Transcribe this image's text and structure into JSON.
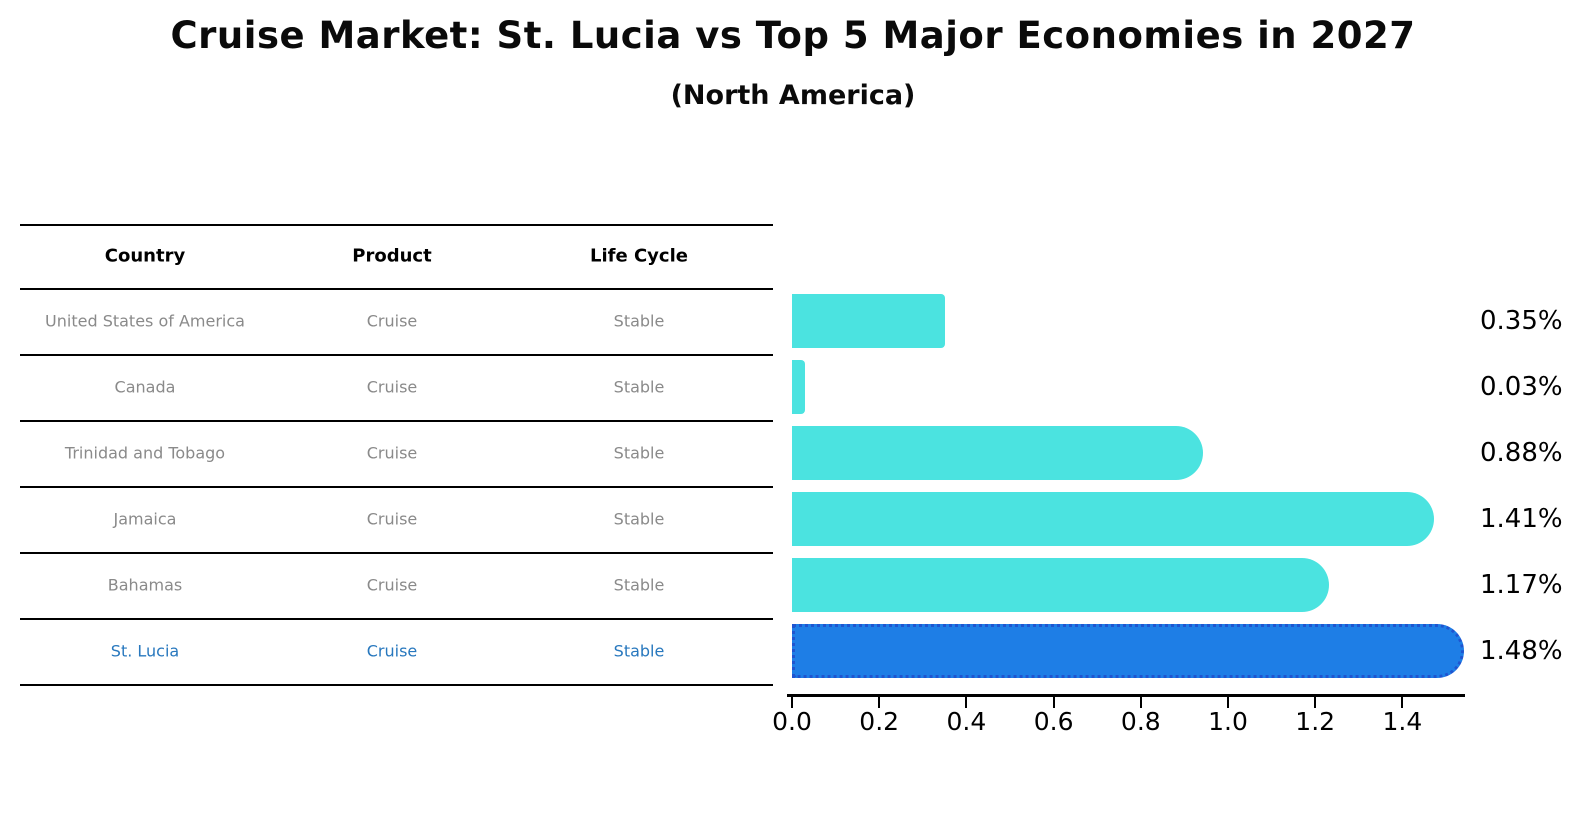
{
  "title": "Cruise Market: St. Lucia vs Top 5 Major Economies in 2027",
  "subtitle": "(North America)",
  "table": {
    "headers": [
      "Country",
      "Product",
      "Life Cycle"
    ],
    "rows": [
      {
        "country": "United States of America",
        "product": "Cruise",
        "life_cycle": "Stable",
        "highlight": false
      },
      {
        "country": "Canada",
        "product": "Cruise",
        "life_cycle": "Stable",
        "highlight": false
      },
      {
        "country": "Trinidad and Tobago",
        "product": "Cruise",
        "life_cycle": "Stable",
        "highlight": false
      },
      {
        "country": "Jamaica",
        "product": "Cruise",
        "life_cycle": "Stable",
        "highlight": false
      },
      {
        "country": "Bahamas",
        "product": "Cruise",
        "life_cycle": "Stable",
        "highlight": false
      },
      {
        "country": "St. Lucia",
        "product": "Cruise",
        "life_cycle": "Stable",
        "highlight": true
      }
    ]
  },
  "chart_data": {
    "type": "bar",
    "orientation": "horizontal",
    "title": "Cruise Market: St. Lucia vs Top 5 Major Economies in 2027",
    "subtitle": "(North America)",
    "categories": [
      "United States of America",
      "Canada",
      "Trinidad and Tobago",
      "Jamaica",
      "Bahamas",
      "St. Lucia"
    ],
    "values": [
      0.35,
      0.03,
      0.88,
      1.41,
      1.17,
      1.48
    ],
    "value_labels": [
      "0.35%",
      "0.03%",
      "0.88%",
      "1.41%",
      "1.17%",
      "1.48%"
    ],
    "x_ticks": [
      "0.0",
      "0.2",
      "0.4",
      "0.6",
      "0.8",
      "1.0",
      "1.2",
      "1.4"
    ],
    "xlim": [
      0,
      1.55
    ],
    "xlabel": "",
    "ylabel": "",
    "grid": false,
    "legend": "none",
    "highlight_index": 5,
    "colors": {
      "bar": "#4BE3E0",
      "highlight_bar": "#1E7EE6",
      "highlight_border": "#1F55D0",
      "highlight_text": "#2878BE",
      "row_text": "#8A8A8A",
      "header_text": "#000000",
      "value_label_text": "#000000",
      "axis": "#000000"
    }
  }
}
